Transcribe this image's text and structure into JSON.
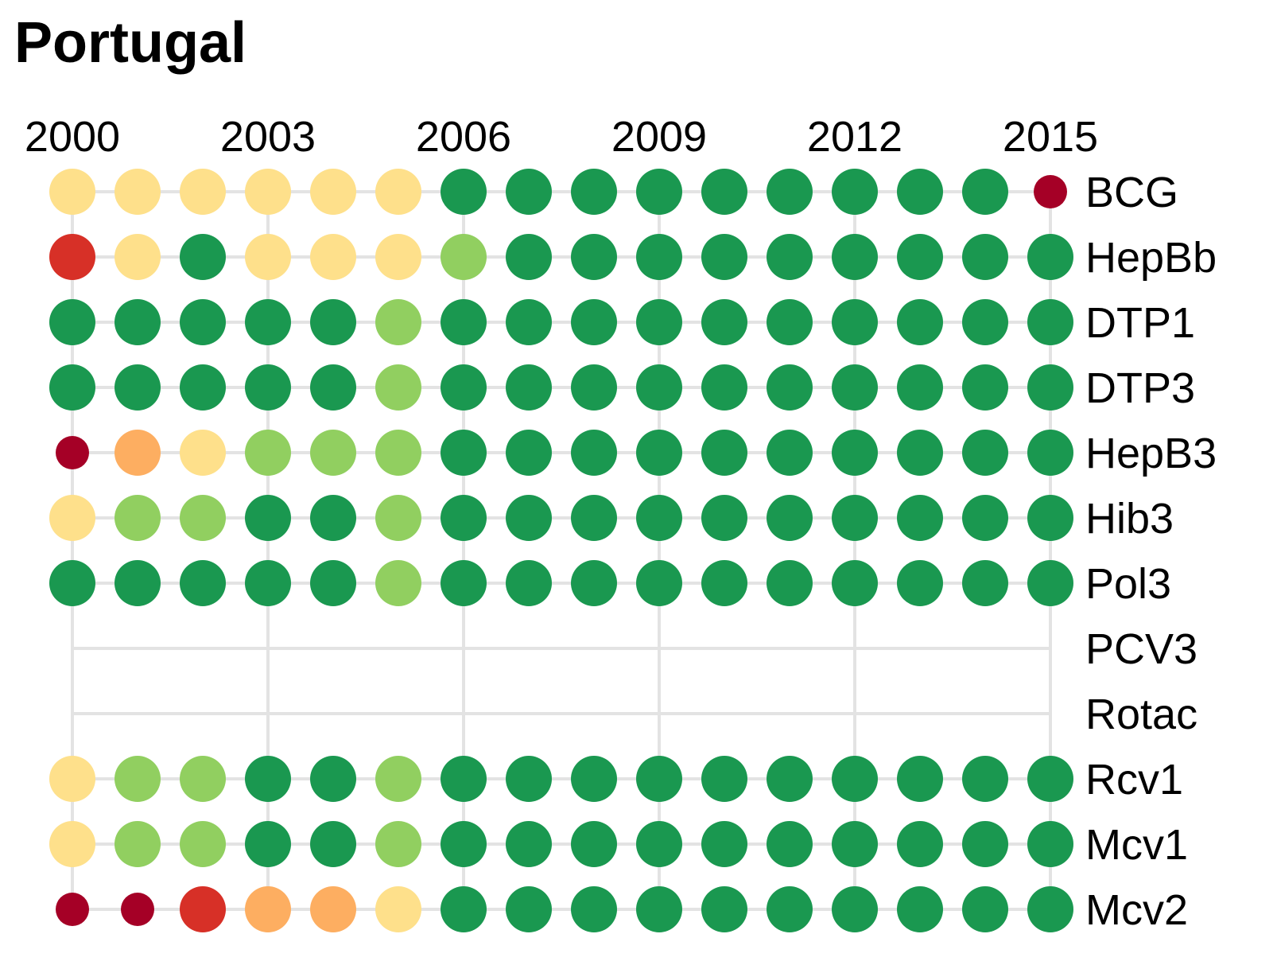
{
  "chart_data": {
    "type": "dot-matrix",
    "title": "Portugal",
    "x": [
      2000,
      2001,
      2002,
      2003,
      2004,
      2005,
      2006,
      2007,
      2008,
      2009,
      2010,
      2011,
      2012,
      2013,
      2014,
      2015
    ],
    "x_tick_labels": [
      "2000",
      "2003",
      "2006",
      "2009",
      "2012",
      "2015"
    ],
    "x_tick_values": [
      2000,
      2003,
      2006,
      2009,
      2012,
      2015
    ],
    "x_axis_position": "top",
    "row_label_position": "right",
    "grid": true,
    "legend": "none",
    "colors": {
      "very_low": "#a50026",
      "low": "#d73027",
      "mid_low": "#fdae61",
      "mid": "#fee08b",
      "mid_high": "#91cf60",
      "high": "#1a9850",
      "grid": "#e3e3e3"
    },
    "series": [
      {
        "name": "BCG",
        "levels": [
          "mid",
          "mid",
          "mid",
          "mid",
          "mid",
          "mid",
          "high",
          "high",
          "high",
          "high",
          "high",
          "high",
          "high",
          "high",
          "high",
          "very_low"
        ],
        "small": [
          false,
          false,
          false,
          false,
          false,
          false,
          false,
          false,
          false,
          false,
          false,
          false,
          false,
          false,
          false,
          true
        ]
      },
      {
        "name": "HepBb",
        "levels": [
          "low",
          "mid",
          "high",
          "mid",
          "mid",
          "mid",
          "mid_high",
          "high",
          "high",
          "high",
          "high",
          "high",
          "high",
          "high",
          "high",
          "high"
        ],
        "small": [
          false,
          false,
          false,
          false,
          false,
          false,
          false,
          false,
          false,
          false,
          false,
          false,
          false,
          false,
          false,
          false
        ]
      },
      {
        "name": "DTP1",
        "levels": [
          "high",
          "high",
          "high",
          "high",
          "high",
          "mid_high",
          "high",
          "high",
          "high",
          "high",
          "high",
          "high",
          "high",
          "high",
          "high",
          "high"
        ],
        "small": [
          false,
          false,
          false,
          false,
          false,
          false,
          false,
          false,
          false,
          false,
          false,
          false,
          false,
          false,
          false,
          false
        ]
      },
      {
        "name": "DTP3",
        "levels": [
          "high",
          "high",
          "high",
          "high",
          "high",
          "mid_high",
          "high",
          "high",
          "high",
          "high",
          "high",
          "high",
          "high",
          "high",
          "high",
          "high"
        ],
        "small": [
          false,
          false,
          false,
          false,
          false,
          false,
          false,
          false,
          false,
          false,
          false,
          false,
          false,
          false,
          false,
          false
        ]
      },
      {
        "name": "HepB3",
        "levels": [
          "very_low",
          "mid_low",
          "mid",
          "mid_high",
          "mid_high",
          "mid_high",
          "high",
          "high",
          "high",
          "high",
          "high",
          "high",
          "high",
          "high",
          "high",
          "high"
        ],
        "small": [
          true,
          false,
          false,
          false,
          false,
          false,
          false,
          false,
          false,
          false,
          false,
          false,
          false,
          false,
          false,
          false
        ]
      },
      {
        "name": "Hib3",
        "levels": [
          "mid",
          "mid_high",
          "mid_high",
          "high",
          "high",
          "mid_high",
          "high",
          "high",
          "high",
          "high",
          "high",
          "high",
          "high",
          "high",
          "high",
          "high"
        ],
        "small": [
          false,
          false,
          false,
          false,
          false,
          false,
          false,
          false,
          false,
          false,
          false,
          false,
          false,
          false,
          false,
          false
        ]
      },
      {
        "name": "Pol3",
        "levels": [
          "high",
          "high",
          "high",
          "high",
          "high",
          "mid_high",
          "high",
          "high",
          "high",
          "high",
          "high",
          "high",
          "high",
          "high",
          "high",
          "high"
        ],
        "small": [
          false,
          false,
          false,
          false,
          false,
          false,
          false,
          false,
          false,
          false,
          false,
          false,
          false,
          false,
          false,
          false
        ]
      },
      {
        "name": "PCV3",
        "levels": [],
        "small": []
      },
      {
        "name": "Rotac",
        "levels": [],
        "small": []
      },
      {
        "name": "Rcv1",
        "levels": [
          "mid",
          "mid_high",
          "mid_high",
          "high",
          "high",
          "mid_high",
          "high",
          "high",
          "high",
          "high",
          "high",
          "high",
          "high",
          "high",
          "high",
          "high"
        ],
        "small": [
          false,
          false,
          false,
          false,
          false,
          false,
          false,
          false,
          false,
          false,
          false,
          false,
          false,
          false,
          false,
          false
        ]
      },
      {
        "name": "Mcv1",
        "levels": [
          "mid",
          "mid_high",
          "mid_high",
          "high",
          "high",
          "mid_high",
          "high",
          "high",
          "high",
          "high",
          "high",
          "high",
          "high",
          "high",
          "high",
          "high"
        ],
        "small": [
          false,
          false,
          false,
          false,
          false,
          false,
          false,
          false,
          false,
          false,
          false,
          false,
          false,
          false,
          false,
          false
        ]
      },
      {
        "name": "Mcv2",
        "levels": [
          "very_low",
          "very_low",
          "low",
          "mid_low",
          "mid_low",
          "mid",
          "high",
          "high",
          "high",
          "high",
          "high",
          "high",
          "high",
          "high",
          "high",
          "high"
        ],
        "small": [
          true,
          true,
          false,
          false,
          false,
          false,
          false,
          false,
          false,
          false,
          false,
          false,
          false,
          false,
          false,
          false
        ]
      }
    ]
  }
}
